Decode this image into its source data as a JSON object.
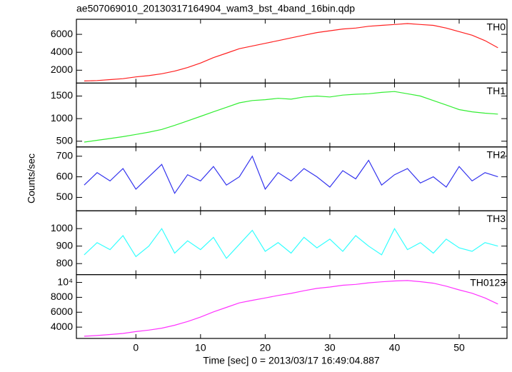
{
  "chart_data": [
    {
      "type": "line",
      "title": "ae507069010_20130317164904_wam3_bst_4band_16bin.qdp",
      "label": "TH0",
      "x": [
        -8,
        -6,
        -4,
        -2,
        0,
        2,
        4,
        6,
        8,
        10,
        12,
        14,
        16,
        18,
        20,
        22,
        24,
        26,
        28,
        30,
        32,
        34,
        36,
        38,
        40,
        42,
        44,
        46,
        48,
        50,
        52,
        54,
        56
      ],
      "series": [
        {
          "color": "#ff2020",
          "values": [
            800,
            850,
            950,
            1050,
            1250,
            1400,
            1600,
            1900,
            2300,
            2800,
            3400,
            3900,
            4400,
            4700,
            5000,
            5300,
            5600,
            5900,
            6200,
            6400,
            6600,
            6700,
            6900,
            7000,
            7100,
            7200,
            7100,
            7000,
            6700,
            6300,
            5900,
            5300,
            4500
          ]
        }
      ],
      "xlim": [
        -9.2,
        57.4
      ],
      "xticks": [
        0,
        10,
        20,
        30,
        40,
        50
      ],
      "ylim": [
        560,
        7680
      ],
      "yticks": [
        2000,
        4000,
        6000
      ]
    },
    {
      "type": "line",
      "label": "TH1",
      "x": [
        -8,
        -6,
        -4,
        -2,
        0,
        2,
        4,
        6,
        8,
        10,
        12,
        14,
        16,
        18,
        20,
        22,
        24,
        26,
        28,
        30,
        32,
        34,
        36,
        38,
        40,
        42,
        44,
        46,
        48,
        50,
        52,
        54,
        56
      ],
      "series": [
        {
          "color": "#33ee33",
          "values": [
            480,
            520,
            560,
            600,
            650,
            700,
            760,
            850,
            950,
            1050,
            1150,
            1250,
            1350,
            1400,
            1420,
            1450,
            1430,
            1480,
            1500,
            1480,
            1520,
            1540,
            1550,
            1580,
            1600,
            1550,
            1500,
            1400,
            1300,
            1200,
            1150,
            1120,
            1100
          ]
        }
      ],
      "xlim": [
        -9.2,
        57.4
      ],
      "xticks": [
        0,
        10,
        20,
        30,
        40,
        50
      ],
      "ylim": [
        373,
        1786
      ],
      "yticks": [
        500,
        1000,
        1500
      ]
    },
    {
      "type": "line",
      "label": "TH2",
      "y_label": "Counts/sec",
      "x": [
        -8,
        -6,
        -4,
        -2,
        0,
        2,
        4,
        6,
        8,
        10,
        12,
        14,
        16,
        18,
        20,
        22,
        24,
        26,
        28,
        30,
        32,
        34,
        36,
        38,
        40,
        42,
        44,
        46,
        48,
        50,
        52,
        54,
        56
      ],
      "series": [
        {
          "color": "#3333ee",
          "values": [
            560,
            620,
            580,
            640,
            540,
            600,
            660,
            520,
            610,
            580,
            650,
            560,
            600,
            700,
            540,
            620,
            580,
            640,
            600,
            550,
            630,
            590,
            680,
            560,
            610,
            640,
            570,
            600,
            550,
            650,
            580,
            620,
            600
          ]
        }
      ],
      "xlim": [
        -9.2,
        57.4
      ],
      "xticks": [
        0,
        10,
        20,
        30,
        40,
        50
      ],
      "ylim": [
        435,
        745
      ],
      "yticks": [
        500,
        600,
        700
      ]
    },
    {
      "type": "line",
      "label": "TH3",
      "x": [
        -8,
        -6,
        -4,
        -2,
        0,
        2,
        4,
        6,
        8,
        10,
        12,
        14,
        16,
        18,
        20,
        22,
        24,
        26,
        28,
        30,
        32,
        34,
        36,
        38,
        40,
        42,
        44,
        46,
        48,
        50,
        52,
        54,
        56
      ],
      "series": [
        {
          "color": "#33ffff",
          "values": [
            850,
            920,
            880,
            960,
            840,
            900,
            1000,
            860,
            930,
            880,
            950,
            830,
            910,
            990,
            870,
            920,
            860,
            950,
            890,
            940,
            870,
            960,
            900,
            850,
            1000,
            880,
            920,
            860,
            940,
            890,
            870,
            920,
            900
          ]
        }
      ],
      "xlim": [
        -9.2,
        57.4
      ],
      "xticks": [
        0,
        10,
        20,
        30,
        40,
        50
      ],
      "ylim": [
        737,
        1102
      ],
      "yticks": [
        800,
        900,
        1000
      ]
    },
    {
      "type": "line",
      "label": "TH0123",
      "x_label": "Time [sec] 0 = 2013/03/17 16:49:04.887",
      "x": [
        -8,
        -6,
        -4,
        -2,
        0,
        2,
        4,
        6,
        8,
        10,
        12,
        14,
        16,
        18,
        20,
        22,
        24,
        26,
        28,
        30,
        32,
        34,
        36,
        38,
        40,
        42,
        44,
        46,
        48,
        50,
        52,
        54,
        56
      ],
      "series": [
        {
          "color": "#ff33ff",
          "values": [
            2780,
            2870,
            3010,
            3150,
            3400,
            3600,
            3860,
            4250,
            4750,
            5350,
            6050,
            6650,
            7250,
            7600,
            7920,
            8250,
            8530,
            8880,
            9200,
            9380,
            9620,
            9740,
            9950,
            10080,
            10200,
            10250,
            10100,
            9900,
            9500,
            9000,
            8550,
            7920,
            7100
          ]
        }
      ],
      "xlim": [
        -9.2,
        57.4
      ],
      "xticks": [
        0,
        10,
        20,
        30,
        40,
        50
      ],
      "ylim": [
        2480,
        11050
      ],
      "yticks": [
        4000,
        6000,
        8000,
        {
          "value": 10000,
          "label": "10⁴"
        }
      ]
    }
  ]
}
